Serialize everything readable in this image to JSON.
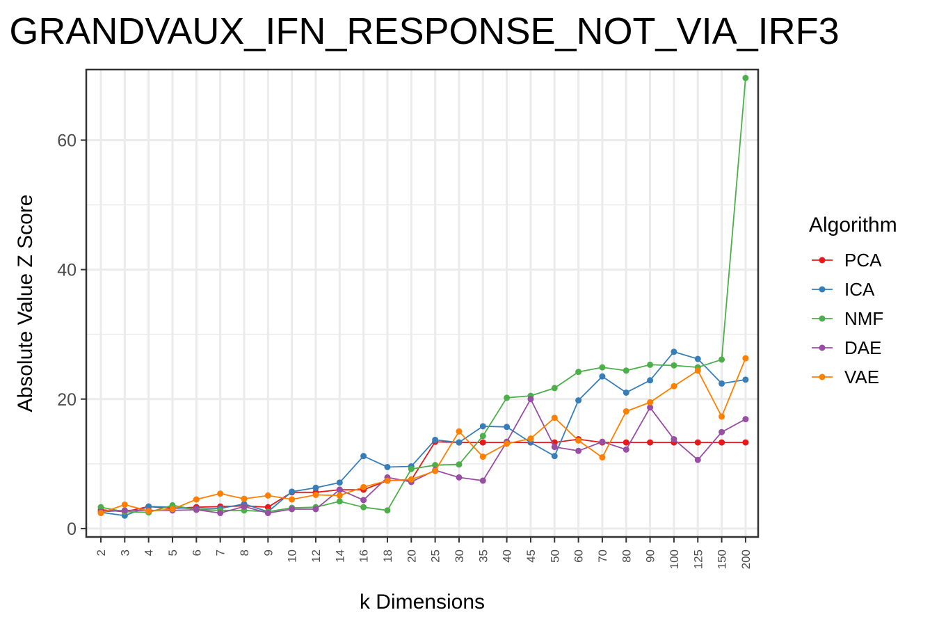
{
  "chart_data": {
    "type": "line",
    "title": "GRANDVAUX_IFN_RESPONSE_NOT_VIA_IRF3",
    "xlabel": "k Dimensions",
    "ylabel": "Absolute Value Z Score",
    "categories": [
      "2",
      "3",
      "4",
      "5",
      "6",
      "7",
      "8",
      "9",
      "10",
      "12",
      "14",
      "16",
      "18",
      "20",
      "25",
      "30",
      "35",
      "40",
      "45",
      "50",
      "60",
      "70",
      "80",
      "90",
      "100",
      "125",
      "150",
      "200"
    ],
    "y_ticks": [
      0,
      20,
      40,
      60
    ],
    "ylim": [
      -1.3,
      70.9
    ],
    "grid": true,
    "legend": {
      "title": "Algorithm",
      "placement": "right"
    },
    "series": [
      {
        "name": "PCA",
        "color": "#e41a1c",
        "values": [
          2.9,
          2.6,
          3.4,
          3.1,
          3.3,
          3.4,
          3.5,
          3.3,
          5.6,
          5.6,
          6.0,
          6.0,
          7.4,
          7.5,
          13.4,
          13.3,
          13.3,
          13.3,
          13.3,
          13.3,
          13.8,
          13.3,
          13.3,
          13.3,
          13.3,
          13.3,
          13.3,
          13.3
        ]
      },
      {
        "name": "ICA",
        "color": "#377eb8",
        "values": [
          2.5,
          2.0,
          3.4,
          3.3,
          3.0,
          3.1,
          3.8,
          2.6,
          5.7,
          6.3,
          7.1,
          11.2,
          9.5,
          9.6,
          13.7,
          13.3,
          15.8,
          15.7,
          13.3,
          11.2,
          19.8,
          23.5,
          21.0,
          22.9,
          27.3,
          26.2,
          22.4,
          23.0
        ]
      },
      {
        "name": "NMF",
        "color": "#4daf4a",
        "values": [
          3.3,
          2.6,
          2.5,
          3.6,
          2.9,
          2.8,
          2.8,
          2.6,
          3.2,
          3.3,
          4.2,
          3.3,
          2.8,
          9.2,
          9.8,
          9.9,
          14.3,
          20.2,
          20.5,
          21.7,
          24.2,
          24.9,
          24.4,
          25.3,
          25.2,
          24.9,
          26.1,
          69.6
        ]
      },
      {
        "name": "DAE",
        "color": "#984ea3",
        "values": [
          2.6,
          2.8,
          2.8,
          2.8,
          2.9,
          2.4,
          3.4,
          2.4,
          3.0,
          3.0,
          6.0,
          4.4,
          7.9,
          7.2,
          9.0,
          7.9,
          7.4,
          13.4,
          20.0,
          12.6,
          12.0,
          13.4,
          12.2,
          18.7,
          13.8,
          10.6,
          14.9,
          16.9
        ]
      },
      {
        "name": "VAE",
        "color": "#ff7f00",
        "values": [
          2.4,
          3.7,
          2.7,
          3.0,
          4.5,
          5.4,
          4.6,
          5.1,
          4.5,
          5.2,
          5.1,
          6.4,
          7.4,
          7.6,
          8.9,
          15.0,
          11.1,
          13.1,
          13.9,
          17.1,
          13.6,
          11.0,
          18.1,
          19.5,
          22.0,
          24.4,
          17.3,
          26.3
        ]
      }
    ]
  }
}
